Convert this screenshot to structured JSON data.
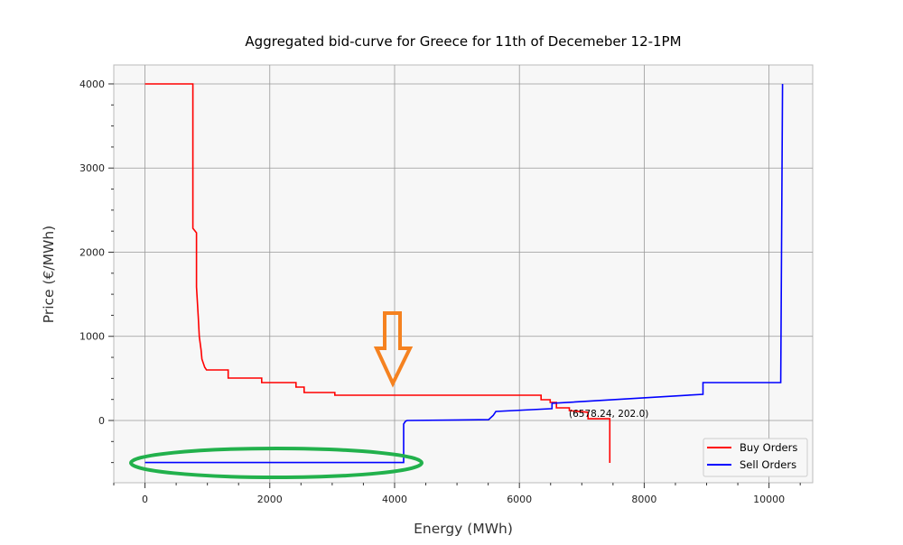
{
  "chart_data": {
    "type": "line",
    "title": "Aggregated bid-curve for Greece for 11th of Decemeber 12-1PM",
    "xlabel": "Energy (MWh)",
    "ylabel": "Price (€/MWh)",
    "xlim": [
      -500,
      10700
    ],
    "ylim": [
      -740,
      4225
    ],
    "xticks": [
      0,
      2000,
      4000,
      6000,
      8000,
      10000
    ],
    "yticks": [
      0,
      1000,
      2000,
      3000,
      4000
    ],
    "grid": true,
    "legend_position": "bottom-right",
    "series": [
      {
        "name": "Buy Orders",
        "color": "#ff0000",
        "step": true,
        "points": [
          [
            0,
            4000
          ],
          [
            768,
            4000
          ],
          [
            768,
            2284
          ],
          [
            826,
            2230
          ],
          [
            826,
            1587
          ],
          [
            855,
            1222
          ],
          [
            870,
            997
          ],
          [
            899,
            836
          ],
          [
            913,
            729
          ],
          [
            957,
            633
          ],
          [
            986,
            600
          ],
          [
            1333,
            600
          ],
          [
            1333,
            504
          ],
          [
            1870,
            504
          ],
          [
            1870,
            450
          ],
          [
            2420,
            450
          ],
          [
            2420,
            397
          ],
          [
            2550,
            397
          ],
          [
            2550,
            332
          ],
          [
            3043,
            332
          ],
          [
            3043,
            300
          ],
          [
            6348,
            300
          ],
          [
            6348,
            247
          ],
          [
            6493,
            247
          ],
          [
            6493,
            214
          ],
          [
            6594,
            214
          ],
          [
            6594,
            150
          ],
          [
            6800,
            150
          ],
          [
            6800,
            118
          ],
          [
            7100,
            97
          ],
          [
            7100,
            20
          ],
          [
            7449,
            20
          ],
          [
            7449,
            -504
          ]
        ]
      },
      {
        "name": "Sell Orders",
        "color": "#0000ff",
        "step": true,
        "points": [
          [
            0,
            -500
          ],
          [
            4145,
            -500
          ],
          [
            4145,
            -43
          ],
          [
            4174,
            -10
          ],
          [
            4200,
            0
          ],
          [
            5507,
            10
          ],
          [
            5580,
            60
          ],
          [
            5623,
            107
          ],
          [
            6522,
            140
          ],
          [
            6522,
            204
          ],
          [
            8942,
            311
          ],
          [
            8942,
            450
          ],
          [
            10188,
            450
          ],
          [
            10217,
            4000
          ]
        ]
      }
    ],
    "annotations": [
      {
        "text": "(6578.24, 202.0)",
        "x": 6578.24,
        "y": 202.0
      }
    ],
    "highlights": {
      "arrow_color": "#f58220",
      "ellipse_color": "#22b14c"
    }
  }
}
